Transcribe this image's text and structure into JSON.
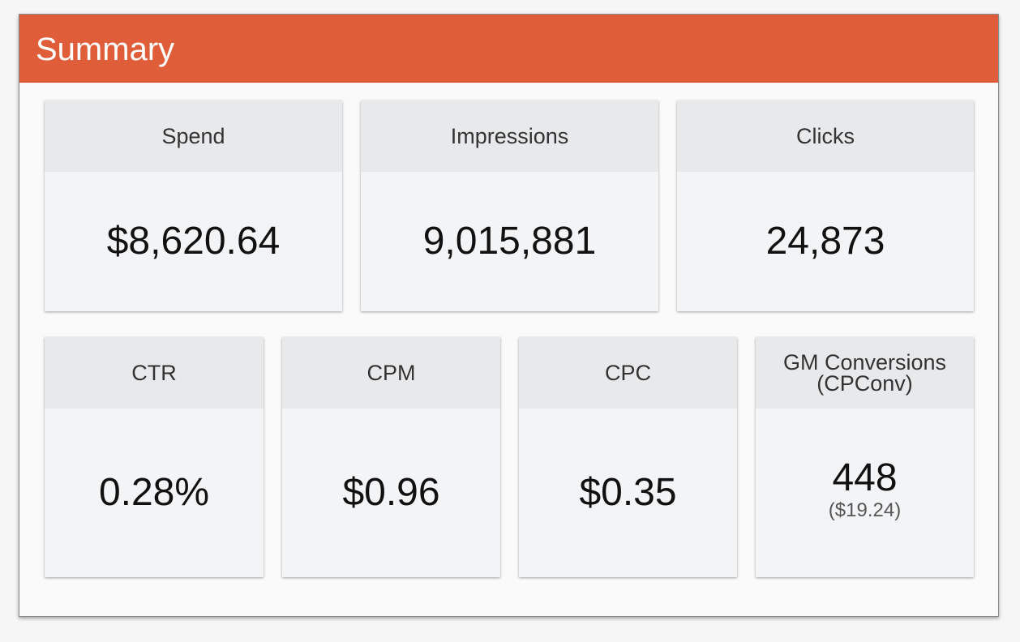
{
  "header": {
    "title": "Summary"
  },
  "metrics_row1": [
    {
      "label": "Spend",
      "value": "$8,620.64"
    },
    {
      "label": "Impressions",
      "value": "9,015,881"
    },
    {
      "label": "Clicks",
      "value": "24,873"
    }
  ],
  "metrics_row2": [
    {
      "label": "CTR",
      "value": "0.28%"
    },
    {
      "label": "CPM",
      "value": "$0.96"
    },
    {
      "label": "CPC",
      "value": "$0.35"
    },
    {
      "label_line1": "GM Conversions",
      "label_line2": "(CPConv)",
      "value": "448",
      "sub_value": "($19.24)"
    }
  ],
  "colors": {
    "header_bg": "#df5d39",
    "card_head_bg": "#e8e9eb",
    "card_body_bg": "#f3f4f6"
  }
}
